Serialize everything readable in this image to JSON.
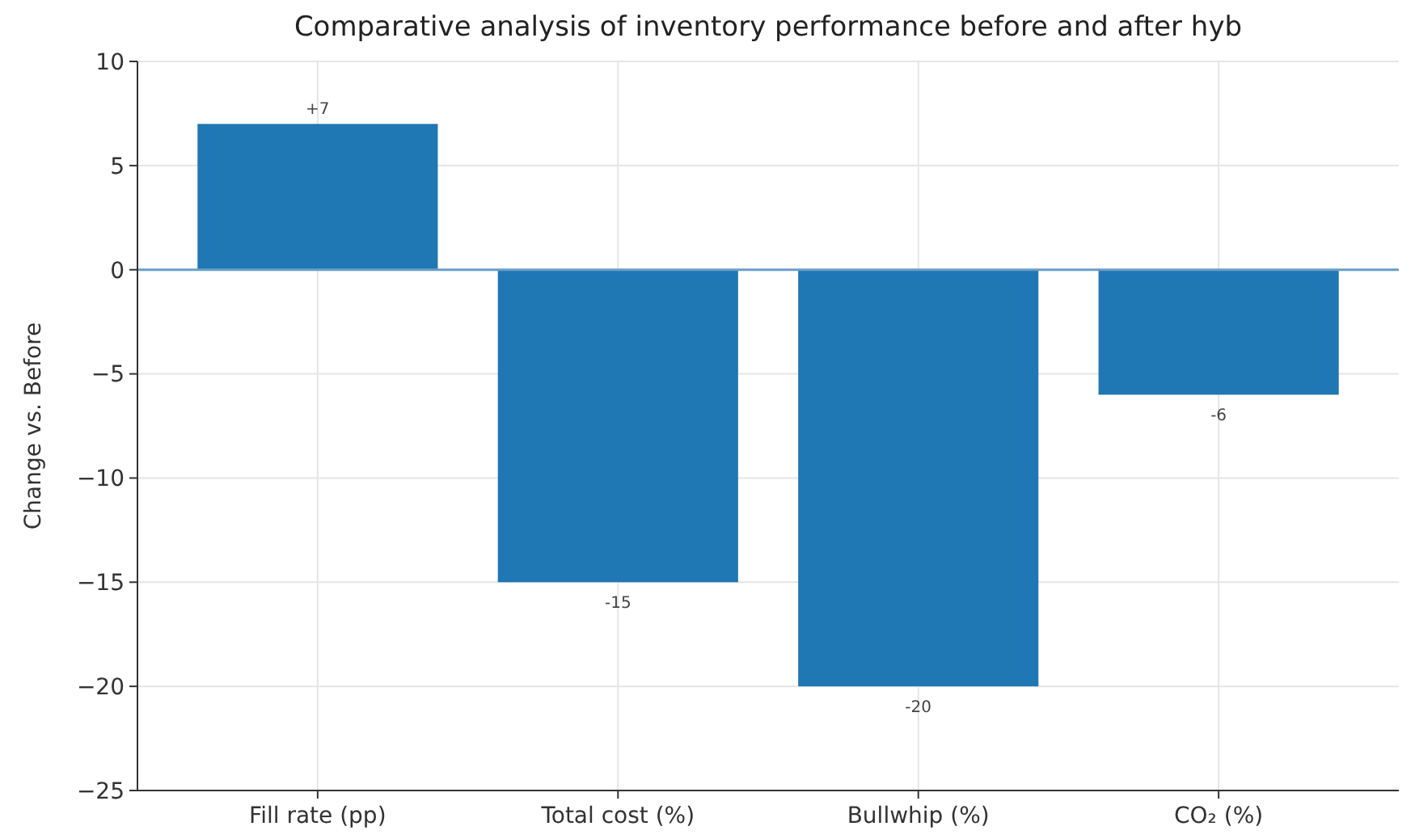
{
  "chart_data": {
    "type": "bar",
    "title": "Comparative analysis of inventory performance before and after hyb",
    "ylabel": "Change vs. Before",
    "categories": [
      "Fill rate (pp)",
      "Total cost (%)",
      "Bullwhip (%)",
      "CO₂ (%)"
    ],
    "values": [
      7,
      -15,
      -20,
      -6
    ],
    "value_labels": [
      "+7",
      "-15",
      "-20",
      "-6"
    ],
    "color": "#1f77b4",
    "ylim": [
      -25,
      10
    ],
    "yticks": [
      {
        "value": -25,
        "label": "−25"
      },
      {
        "value": -20,
        "label": "−20"
      },
      {
        "value": -15,
        "label": "−15"
      },
      {
        "value": -10,
        "label": "−10"
      },
      {
        "value": -5,
        "label": "−5"
      },
      0,
      5,
      10
    ],
    "ref_lines": [
      {
        "axis": "y",
        "value": 0,
        "color": "#6a9ec9"
      }
    ],
    "grid": true
  }
}
